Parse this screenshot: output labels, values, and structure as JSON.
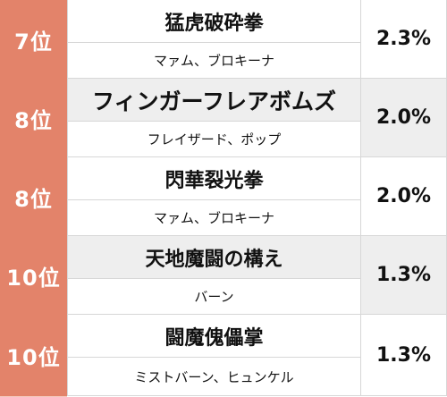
{
  "rows": [
    {
      "rank": "7位",
      "name": "猛虎破砕拳",
      "users": "マァム、ブロキーナ",
      "percent": "2.3%"
    },
    {
      "rank": "8位",
      "name": "フィンガーフレアボムズ",
      "users": "フレイザード、ポップ",
      "percent": "2.0%"
    },
    {
      "rank": "8位",
      "name": "閃華裂光拳",
      "users": "マァム、ブロキーナ",
      "percent": "2.0%"
    },
    {
      "rank": "10位",
      "name": "天地魔闘の構え",
      "users": "バーン",
      "percent": "1.3%"
    },
    {
      "rank": "10位",
      "name": "闘魔傀儡掌",
      "users": "ミストバーン、ヒュンケル",
      "percent": "1.3%"
    }
  ],
  "colors": {
    "rank_background": "#e3836a",
    "shaded_row": "#eeeeee",
    "border": "#d7d7d7"
  }
}
